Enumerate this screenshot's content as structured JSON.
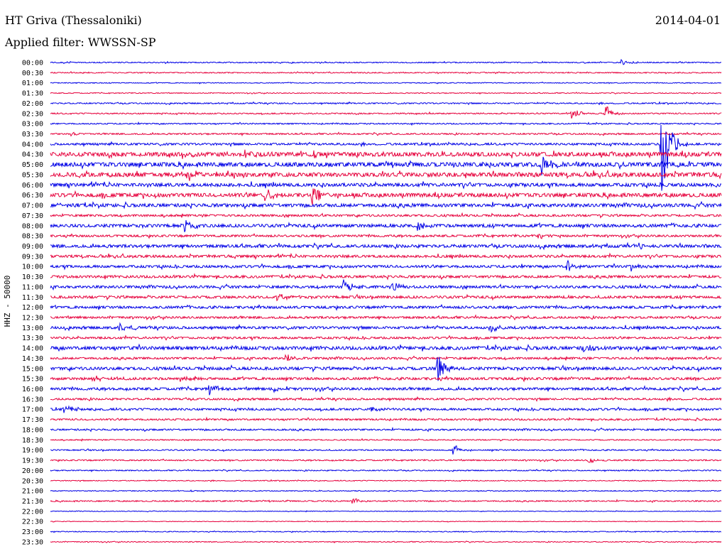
{
  "header": {
    "title": "HT Griva (Thessaloniki)",
    "date": "2014-04-01",
    "filter": "Applied filter: WWSSN-SP"
  },
  "colors": {
    "even_hour": "#0000e6",
    "half_hour": "#e6003c"
  },
  "chart_data": {
    "type": "line",
    "title": "HT Griva (Thessaloniki)",
    "ylabel": "HHZ - 50000",
    "row_labels": [
      "00:00",
      "00:30",
      "01:00",
      "01:30",
      "02:00",
      "02:30",
      "03:00",
      "03:30",
      "04:00",
      "04:30",
      "05:00",
      "05:30",
      "06:00",
      "06:30",
      "07:00",
      "07:30",
      "08:00",
      "08:30",
      "09:00",
      "09:30",
      "10:00",
      "10:30",
      "11:00",
      "11:30",
      "12:00",
      "12:30",
      "13:00",
      "13:30",
      "14:00",
      "14:30",
      "15:00",
      "15:30",
      "16:00",
      "16:30",
      "17:00",
      "17:30",
      "18:00",
      "18:30",
      "19:00",
      "19:30",
      "20:00",
      "20:30",
      "21:00",
      "21:30",
      "22:00",
      "22:30",
      "23:00",
      "23:30"
    ],
    "row_minutes": 30,
    "noise_level": [
      0.5,
      0.5,
      0.4,
      0.4,
      0.6,
      0.6,
      0.6,
      0.7,
      1.0,
      2.0,
      2.0,
      2.0,
      1.6,
      1.8,
      1.6,
      1.0,
      1.5,
      1.0,
      1.4,
      1.2,
      1.2,
      1.2,
      1.2,
      1.2,
      1.2,
      1.0,
      1.2,
      1.0,
      1.6,
      1.0,
      1.4,
      1.2,
      1.2,
      0.9,
      1.0,
      0.8,
      0.8,
      0.5,
      0.6,
      0.6,
      0.5,
      0.4,
      0.4,
      0.6,
      0.3,
      0.3,
      0.4,
      0.4
    ],
    "events": [
      {
        "row": 0,
        "minute": 25.5,
        "amp": 6
      },
      {
        "row": 5,
        "minute": 23.3,
        "amp": 8
      },
      {
        "row": 5,
        "minute": 24.8,
        "amp": 14
      },
      {
        "row": 7,
        "minute": 0.9,
        "amp": 3
      },
      {
        "row": 8,
        "minute": 27.3,
        "amp": 90
      },
      {
        "row": 9,
        "minute": 5.9,
        "amp": 8
      },
      {
        "row": 9,
        "minute": 8.7,
        "amp": 7
      },
      {
        "row": 10,
        "minute": 21.9,
        "amp": 24
      },
      {
        "row": 11,
        "minute": 6.1,
        "amp": 14
      },
      {
        "row": 13,
        "minute": 9.6,
        "amp": 10
      },
      {
        "row": 13,
        "minute": 11.7,
        "amp": 16
      },
      {
        "row": 14,
        "minute": 0.3,
        "amp": 5
      },
      {
        "row": 16,
        "minute": 6.0,
        "amp": 10
      },
      {
        "row": 16,
        "minute": 16.4,
        "amp": 8
      },
      {
        "row": 17,
        "minute": 21.8,
        "amp": 6
      },
      {
        "row": 18,
        "minute": 26.3,
        "amp": 7
      },
      {
        "row": 20,
        "minute": 23.1,
        "amp": 8
      },
      {
        "row": 20,
        "minute": 25.9,
        "amp": 8
      },
      {
        "row": 22,
        "minute": 13.1,
        "amp": 10
      },
      {
        "row": 22,
        "minute": 15.3,
        "amp": 7
      },
      {
        "row": 23,
        "minute": 10.1,
        "amp": 8
      },
      {
        "row": 26,
        "minute": 3.1,
        "amp": 7
      },
      {
        "row": 26,
        "minute": 19.7,
        "amp": 7
      },
      {
        "row": 28,
        "minute": 23.8,
        "amp": 7
      },
      {
        "row": 29,
        "minute": 10.5,
        "amp": 7
      },
      {
        "row": 30,
        "minute": 17.3,
        "amp": 24
      },
      {
        "row": 31,
        "minute": 1.9,
        "amp": 6
      },
      {
        "row": 31,
        "minute": 5.8,
        "amp": 6
      },
      {
        "row": 32,
        "minute": 7.1,
        "amp": 9
      },
      {
        "row": 32,
        "minute": 10.0,
        "amp": 5
      },
      {
        "row": 34,
        "minute": 0.6,
        "amp": 7
      },
      {
        "row": 34,
        "minute": 14.3,
        "amp": 6
      },
      {
        "row": 38,
        "minute": 18.0,
        "amp": 9
      },
      {
        "row": 39,
        "minute": 24.0,
        "amp": 6
      },
      {
        "row": 43,
        "minute": 13.5,
        "amp": 5
      }
    ]
  }
}
